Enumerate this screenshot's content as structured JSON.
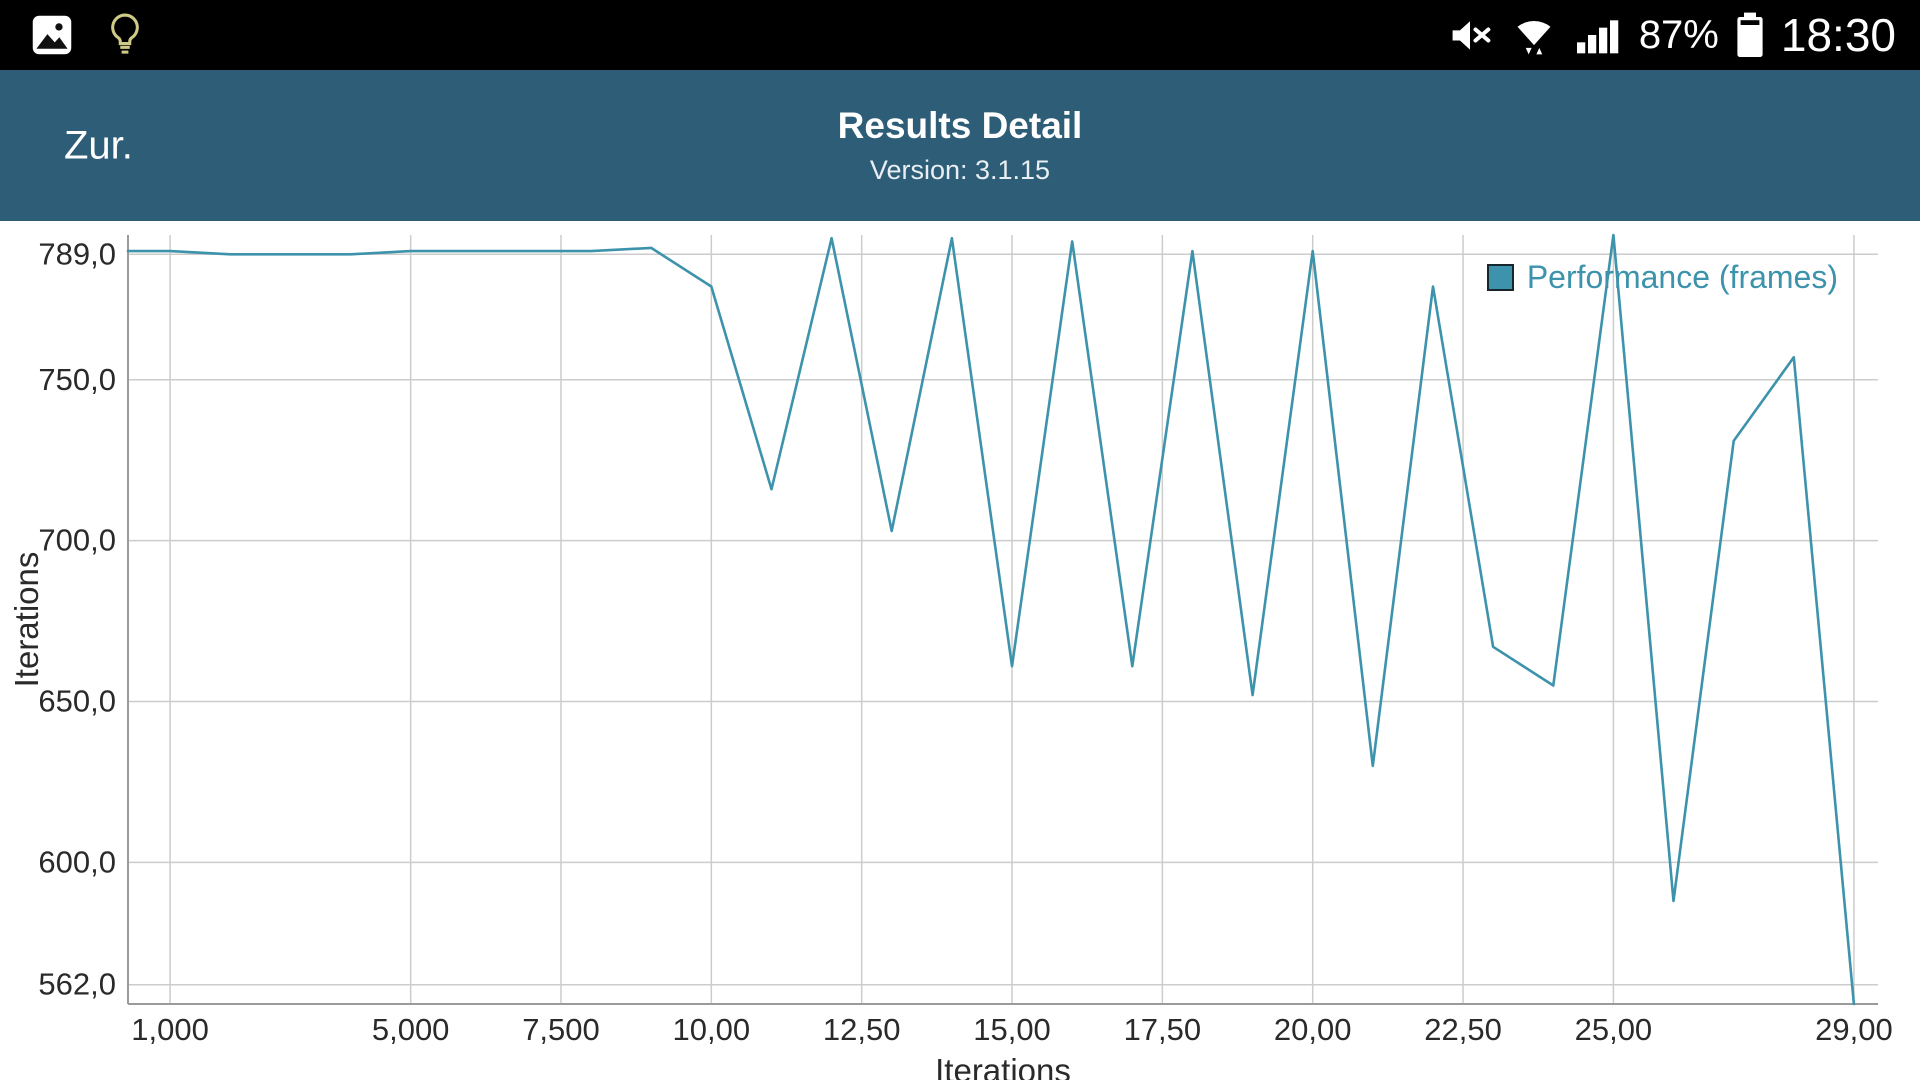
{
  "status_bar": {
    "time": "18:30",
    "battery_percent": "87%",
    "icons_left": [
      "gallery-icon",
      "lightbulb-icon"
    ],
    "icons_right": [
      "mute-vibrate-icon",
      "wifi-icon",
      "signal-strength-icon",
      "battery-icon"
    ]
  },
  "header": {
    "back_label": "Zur.",
    "title": "Results Detail",
    "subtitle": "Version: 3.1.15",
    "background_color": "#2e5d78"
  },
  "chart_data": {
    "type": "line",
    "title": "",
    "xlabel": "Iterations",
    "ylabel": "Iterations",
    "legend": {
      "label": "Performance (frames)",
      "position": "top-right"
    },
    "line_color": "#3d92ac",
    "grid_color": "#cccccc",
    "axis_color": "#9b9b9b",
    "text_color": "#2a2a2a",
    "grid": true,
    "xlim": [
      0.3,
      29.4
    ],
    "ylim": [
      556,
      795
    ],
    "x": [
      0.3,
      1,
      2,
      3,
      4,
      5,
      6,
      7,
      8,
      9,
      10,
      11,
      12,
      13,
      14,
      15,
      16,
      17,
      18,
      19,
      20,
      21,
      22,
      23,
      24,
      25,
      26,
      27,
      28,
      29
    ],
    "series": [
      {
        "name": "Performance (frames)",
        "values": [
          790,
          790,
          789,
          789,
          789,
          790,
          790,
          790,
          790,
          791,
          779,
          716,
          794,
          703,
          794,
          661,
          793,
          661,
          790,
          652,
          790,
          630,
          779,
          667,
          655,
          795,
          588,
          731,
          757,
          556
        ]
      }
    ],
    "x_ticks": [
      {
        "v": 1,
        "label": "1,000"
      },
      {
        "v": 5,
        "label": "5,000"
      },
      {
        "v": 7.5,
        "label": "7,500"
      },
      {
        "v": 10,
        "label": "10,00"
      },
      {
        "v": 12.5,
        "label": "12,50"
      },
      {
        "v": 15,
        "label": "15,00"
      },
      {
        "v": 17.5,
        "label": "17,50"
      },
      {
        "v": 20,
        "label": "20,00"
      },
      {
        "v": 22.5,
        "label": "22,50"
      },
      {
        "v": 25,
        "label": "25,00"
      },
      {
        "v": 29,
        "label": "29,00"
      }
    ],
    "y_ticks": [
      {
        "v": 789,
        "label": "789,0"
      },
      {
        "v": 750,
        "label": "750,0"
      },
      {
        "v": 700,
        "label": "700,0"
      },
      {
        "v": 650,
        "label": "650,0"
      },
      {
        "v": 600,
        "label": "600,0"
      },
      {
        "v": 562,
        "label": "562,0"
      }
    ]
  }
}
